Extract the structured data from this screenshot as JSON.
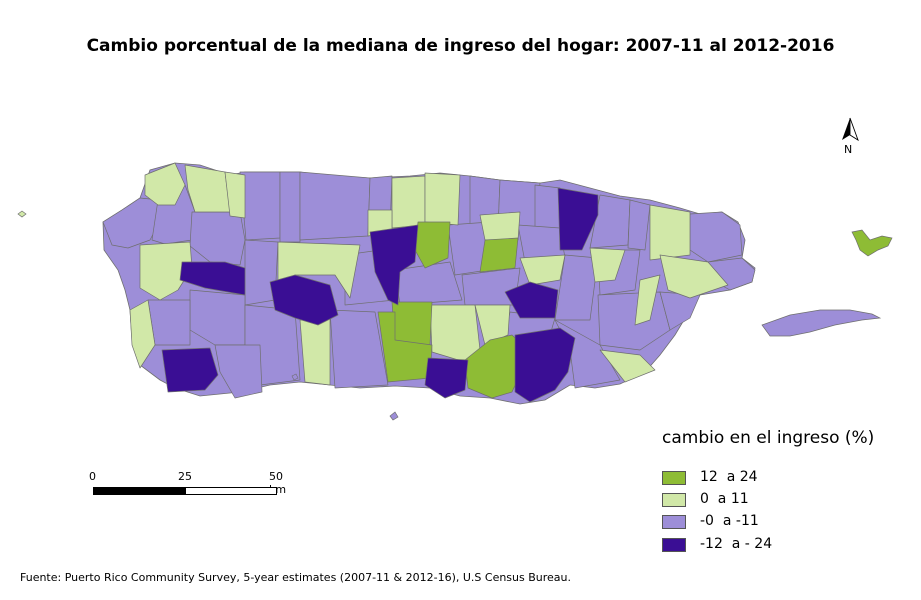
{
  "title": "Cambio porcentual de la mediana de ingreso del hogar: 2007-11 al 2012-2016",
  "north_arrow": {
    "label": "N",
    "icon": "north-arrow-icon"
  },
  "scale_bar": {
    "ticks": [
      "0",
      "25",
      "50 km"
    ]
  },
  "legend": {
    "title": "cambio en el ingreso (%)",
    "items": [
      {
        "label": "12  a 24",
        "color": "#8ebc35"
      },
      {
        "label": "0  a 11",
        "color": "#d1e8a8"
      },
      {
        "label": "-0  a -11",
        "color": "#9d8ed8"
      },
      {
        "label": "-12  a - 24",
        "color": "#3a0e94"
      }
    ]
  },
  "source": "Fuente: Puerto Rico Community Survey, 5-year estimates (2007-11 & 2012-16), U.S Census Bureau.",
  "colors": {
    "class_12_24": "#8ebc35",
    "class_0_11": "#d1e8a8",
    "class_neg0_neg11": "#9d8ed8",
    "class_neg12_neg24": "#3a0e94",
    "border": "#6f6f6f"
  }
}
